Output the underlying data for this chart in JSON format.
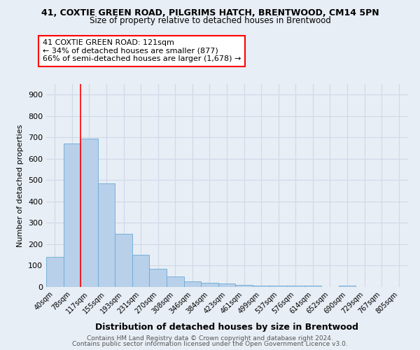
{
  "title1": "41, COXTIE GREEN ROAD, PILGRIMS HATCH, BRENTWOOD, CM14 5PN",
  "title2": "Size of property relative to detached houses in Brentwood",
  "xlabel": "Distribution of detached houses by size in Brentwood",
  "ylabel": "Number of detached properties",
  "bin_labels": [
    "40sqm",
    "78sqm",
    "117sqm",
    "155sqm",
    "193sqm",
    "231sqm",
    "270sqm",
    "308sqm",
    "346sqm",
    "384sqm",
    "423sqm",
    "461sqm",
    "499sqm",
    "537sqm",
    "576sqm",
    "614sqm",
    "652sqm",
    "690sqm",
    "729sqm",
    "767sqm",
    "805sqm"
  ],
  "bar_values": [
    140,
    670,
    695,
    485,
    248,
    150,
    85,
    50,
    25,
    20,
    15,
    10,
    5,
    5,
    5,
    8,
    0,
    8,
    0,
    0,
    0
  ],
  "bar_color": "#b8d0ea",
  "bar_edge_color": "#6aaad4",
  "red_line_x": 2.0,
  "annotation_line1": "41 COXTIE GREEN ROAD: 121sqm",
  "annotation_line2": "← 34% of detached houses are smaller (877)",
  "annotation_line3": "66% of semi-detached houses are larger (1,678) →",
  "ylim": [
    0,
    950
  ],
  "yticks": [
    0,
    100,
    200,
    300,
    400,
    500,
    600,
    700,
    800,
    900
  ],
  "footer1": "Contains HM Land Registry data © Crown copyright and database right 2024.",
  "footer2": "Contains public sector information licensed under the Open Government Licence v3.0.",
  "background_color": "#e8eef5",
  "grid_color": "#d0d8e8"
}
